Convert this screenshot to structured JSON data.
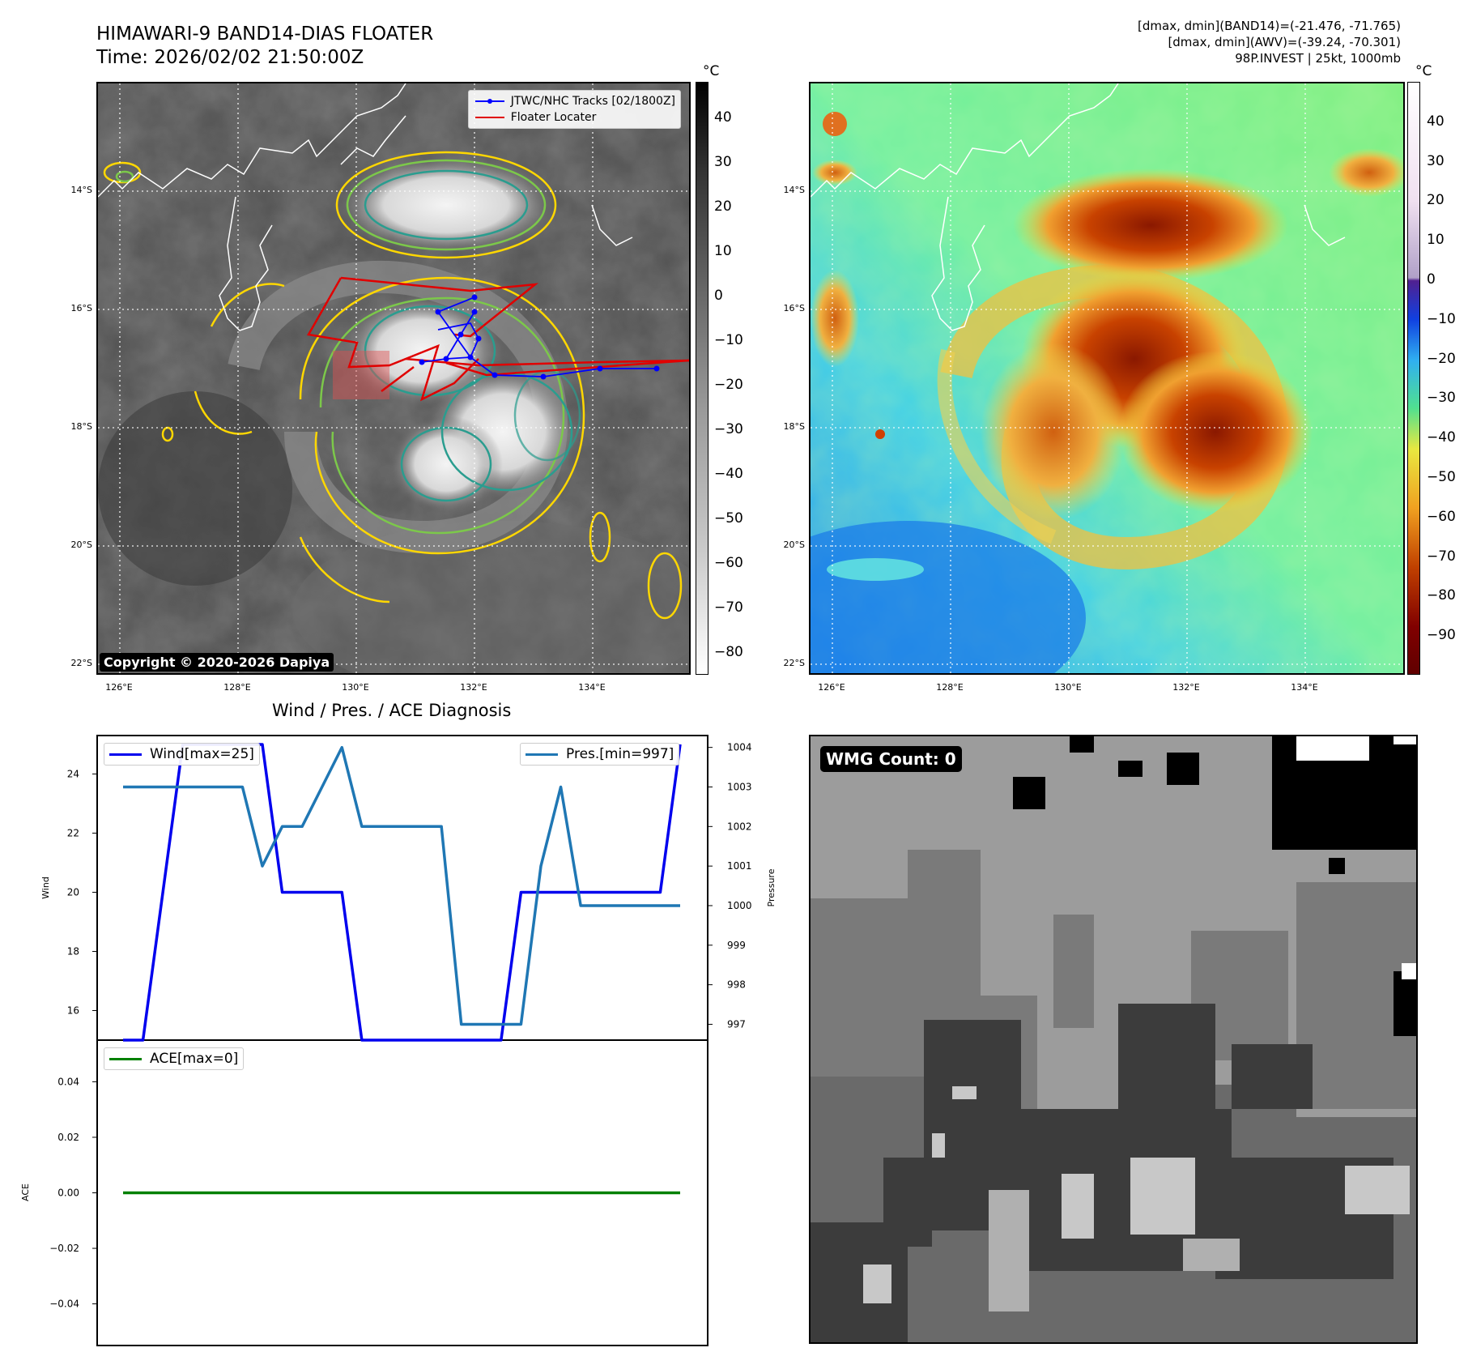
{
  "header": {
    "title_line1": "HIMAWARI-9 BAND14-DIAS FLOATER",
    "title_line2": "Time: 2026/02/02 21:50:00Z",
    "info_line1": "[dmax, dmin](BAND14)=(-21.476, -71.765)",
    "info_line2": "[dmax, dmin](AWV)=(-39.24, -70.301)",
    "info_line3": "98P.INVEST | 25kt, 1000mb"
  },
  "map": {
    "lon_ticks": [
      "126°E",
      "128°E",
      "130°E",
      "132°E",
      "134°E"
    ],
    "lat_ticks": [
      "14°S",
      "16°S",
      "18°S",
      "20°S",
      "22°S"
    ],
    "copyright": "Copyright © 2020-2026 Dapiya",
    "legend_tracks": "JTWC/NHC Tracks [02/1800Z]",
    "legend_floater": "Floater Locater",
    "track_color": "#0000ff",
    "floater_color": "#e00000"
  },
  "colorbar_left": {
    "unit": "°C",
    "ticks": [
      "40",
      "30",
      "20",
      "10",
      "0",
      "−10",
      "−20",
      "−30",
      "−40",
      "−50",
      "−60",
      "−70",
      "−80"
    ]
  },
  "colorbar_right": {
    "unit": "°C",
    "ticks": [
      "40",
      "30",
      "20",
      "10",
      "0",
      "−10",
      "−20",
      "−30",
      "−40",
      "−50",
      "−60",
      "−70",
      "−80",
      "−90"
    ]
  },
  "diag_title": "Wind / Pres. / ACE Diagnosis",
  "wmg_label": "WMG Count: 0",
  "chart_data": [
    {
      "type": "line",
      "title": "Wind / Pres. / ACE Diagnosis",
      "ylabel": "Wind",
      "y2label": "Pressure",
      "ylim": [
        15,
        25.3
      ],
      "y2lim": [
        996.6,
        1004.3
      ],
      "yticks": [
        "16",
        "18",
        "20",
        "22",
        "24"
      ],
      "y2ticks": [
        "997",
        "998",
        "999",
        "1000",
        "1001",
        "1002",
        "1003",
        "1004"
      ],
      "series": [
        {
          "name": "Wind[max=25]",
          "color": "#0000ee",
          "x": [
            0,
            0.5,
            1.5,
            2,
            2.5,
            3,
            3.5,
            4,
            4.5,
            5,
            5.5,
            6,
            6.5,
            7,
            7.5,
            8,
            8.5,
            9,
            9.5,
            10,
            10.5,
            11,
            11.5,
            12,
            12.5,
            13,
            13.5,
            14
          ],
          "values": [
            15,
            15,
            25,
            25,
            25,
            25,
            25,
            20,
            20,
            20,
            20,
            15,
            15,
            15,
            15,
            15,
            15,
            15,
            15,
            20,
            20,
            20,
            20,
            20,
            20,
            20,
            20,
            25
          ]
        },
        {
          "name": "Pres.[min=997]",
          "color": "#1f77b4",
          "axis": "right",
          "x": [
            0,
            3,
            3.5,
            4,
            4.5,
            5,
            5.5,
            6,
            6.5,
            7,
            7.5,
            8,
            8.5,
            9,
            9.5,
            10,
            10.5,
            11,
            11.5,
            12,
            12.5,
            13,
            13.5,
            14
          ],
          "values": [
            1003,
            1003,
            1001,
            1002,
            1002,
            1003,
            1004,
            1002,
            1002,
            1002,
            1002,
            1002,
            997,
            997,
            997,
            997,
            1001,
            1003,
            1000,
            1000,
            1000,
            1000,
            1000,
            1000
          ]
        }
      ]
    },
    {
      "type": "line",
      "ylabel": "ACE",
      "ylim": [
        -0.055,
        0.055
      ],
      "yticks": [
        "0.04",
        "0.02",
        "0.00",
        "−0.02",
        "−0.04"
      ],
      "series": [
        {
          "name": "ACE[max=0]",
          "color": "#008000",
          "x": [
            0,
            20
          ],
          "values": [
            0,
            0
          ]
        }
      ]
    }
  ]
}
